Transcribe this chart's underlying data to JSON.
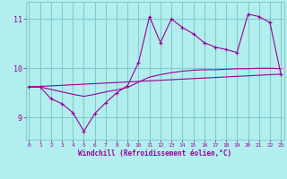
{
  "xlabel": "Windchill (Refroidissement éolien,°C)",
  "bg_color": "#b2eeee",
  "grid_color": "#80cccc",
  "line_color": "#990099",
  "x_ticks": [
    0,
    1,
    2,
    3,
    4,
    5,
    6,
    7,
    8,
    9,
    10,
    11,
    12,
    13,
    14,
    15,
    16,
    17,
    18,
    19,
    20,
    21,
    22,
    23
  ],
  "y_ticks": [
    9,
    10,
    11
  ],
  "ylim": [
    8.55,
    11.35
  ],
  "xlim": [
    -0.3,
    23.3
  ],
  "line1_x": [
    0,
    1,
    2,
    3,
    4,
    5,
    6,
    7,
    8,
    9,
    10,
    11,
    12,
    13,
    14,
    15,
    16,
    17,
    18,
    19,
    20,
    21,
    22,
    23
  ],
  "line1_y": [
    9.62,
    9.62,
    9.38,
    9.28,
    9.1,
    8.72,
    9.08,
    9.3,
    9.5,
    9.65,
    10.12,
    11.05,
    10.52,
    11.0,
    10.83,
    10.7,
    10.52,
    10.43,
    10.38,
    10.32,
    11.1,
    11.05,
    10.93,
    9.88
  ],
  "line2_x": [
    0,
    1,
    2,
    3,
    4,
    5,
    6,
    7,
    8,
    9,
    10,
    11,
    12,
    13,
    14,
    15,
    16,
    17,
    18,
    19,
    20,
    21,
    22,
    23
  ],
  "line2_y": [
    9.62,
    9.62,
    9.57,
    9.52,
    9.47,
    9.43,
    9.47,
    9.52,
    9.56,
    9.61,
    9.72,
    9.82,
    9.87,
    9.91,
    9.94,
    9.96,
    9.97,
    9.97,
    9.98,
    9.99,
    9.99,
    10.0,
    10.0,
    9.99
  ],
  "line3_x": [
    0,
    23
  ],
  "line3_y": [
    9.62,
    9.88
  ]
}
